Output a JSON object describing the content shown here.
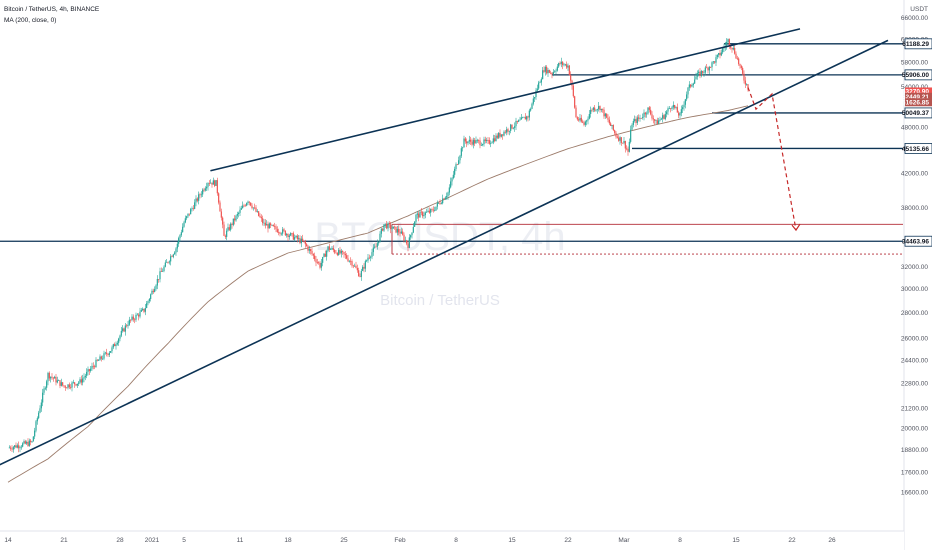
{
  "header": {
    "symbol_line": "Bitcoin / TetherUS, 4h, BINANCE",
    "indicator_line": "MA (200, close, 0)"
  },
  "watermark": {
    "ticker": "BTCUSDT, 4h",
    "name": "Bitcoin / TetherUS"
  },
  "chart_data": {
    "type": "candlestick",
    "title": "Bitcoin / TetherUS, 4h, BINANCE",
    "currency_label": "USDT",
    "ylim": [
      15100,
      68500
    ],
    "y_ticks": [
      {
        "value": 66000,
        "label": "66000.00"
      },
      {
        "value": 62000,
        "label": "62000.00"
      },
      {
        "value": 58000,
        "label": "58000.00"
      },
      {
        "value": 54000,
        "label": "54000.00"
      },
      {
        "value": 48000,
        "label": "48000.00"
      },
      {
        "value": 42000,
        "label": "42000.00"
      },
      {
        "value": 38000,
        "label": "38000.00"
      },
      {
        "value": 32000,
        "label": "32000.00"
      },
      {
        "value": 30000,
        "label": "30000.00"
      },
      {
        "value": 28000,
        "label": "28000.00"
      },
      {
        "value": 26000,
        "label": "26000.00"
      },
      {
        "value": 24400,
        "label": "24400.00"
      },
      {
        "value": 22800,
        "label": "22800.00"
      },
      {
        "value": 21200,
        "label": "21200.00"
      },
      {
        "value": 20000,
        "label": "20000.00"
      },
      {
        "value": 18800,
        "label": "18800.00"
      },
      {
        "value": 17600,
        "label": "17600.00"
      },
      {
        "value": 16600,
        "label": "16600.00"
      }
    ],
    "x_ticks": [
      {
        "pos": 0.0,
        "label": "14"
      },
      {
        "pos": 7.0,
        "label": "21"
      },
      {
        "pos": 14.0,
        "label": "28"
      },
      {
        "pos": 18.0,
        "label": "2021"
      },
      {
        "pos": 22.0,
        "label": "5"
      },
      {
        "pos": 29.0,
        "label": "11"
      },
      {
        "pos": 35.0,
        "label": "18"
      },
      {
        "pos": 42.0,
        "label": "25"
      },
      {
        "pos": 49.0,
        "label": "Feb"
      },
      {
        "pos": 56.0,
        "label": "8"
      },
      {
        "pos": 63.0,
        "label": "15"
      },
      {
        "pos": 70.0,
        "label": "22"
      },
      {
        "pos": 77.0,
        "label": "Mar"
      },
      {
        "pos": 84.0,
        "label": "8"
      },
      {
        "pos": 91.0,
        "label": "15"
      },
      {
        "pos": 98.0,
        "label": "22"
      },
      {
        "pos": 103.0,
        "label": "26"
      }
    ],
    "price_path": [
      [
        0,
        18900
      ],
      [
        3,
        19200
      ],
      [
        5,
        23400
      ],
      [
        7,
        22600
      ],
      [
        9,
        22900
      ],
      [
        11,
        24200
      ],
      [
        13,
        25200
      ],
      [
        15,
        27200
      ],
      [
        17,
        28200
      ],
      [
        19,
        31300
      ],
      [
        21,
        33800
      ],
      [
        22,
        36400
      ],
      [
        25,
        41000
      ],
      [
        26,
        40800
      ],
      [
        27,
        34900
      ],
      [
        28,
        36300
      ],
      [
        30,
        38900
      ],
      [
        32,
        36200
      ],
      [
        35,
        35200
      ],
      [
        37,
        34300
      ],
      [
        39,
        32100
      ],
      [
        40,
        33800
      ],
      [
        42,
        33100
      ],
      [
        43,
        32400
      ],
      [
        44,
        31200
      ],
      [
        45,
        32900
      ],
      [
        46,
        33900
      ],
      [
        47,
        36200
      ],
      [
        49,
        35400
      ],
      [
        50,
        34100
      ],
      [
        51,
        37100
      ],
      [
        53,
        37600
      ],
      [
        55,
        39700
      ],
      [
        57,
        46100
      ],
      [
        60,
        45900
      ],
      [
        63,
        48100
      ],
      [
        65,
        49600
      ],
      [
        67,
        56900
      ],
      [
        68,
        56200
      ],
      [
        69,
        57800
      ],
      [
        70,
        57400
      ],
      [
        70.5,
        53900
      ],
      [
        71,
        49400
      ],
      [
        72,
        48400
      ],
      [
        73,
        50700
      ],
      [
        74,
        50900
      ],
      [
        76,
        46900
      ],
      [
        77,
        45900
      ],
      [
        77.5,
        44700
      ],
      [
        78,
        48600
      ],
      [
        79,
        49300
      ],
      [
        80,
        50600
      ],
      [
        81,
        48600
      ],
      [
        82,
        49600
      ],
      [
        83,
        51300
      ],
      [
        84,
        49600
      ],
      [
        85,
        53600
      ],
      [
        86,
        55600
      ],
      [
        87,
        56600
      ],
      [
        88,
        57700
      ],
      [
        89,
        59400
      ],
      [
        90,
        61800
      ],
      [
        90.8,
        59900
      ],
      [
        91.3,
        58000
      ],
      [
        92,
        55200
      ],
      [
        92.5,
        53900
      ]
    ],
    "ma200_path": [
      [
        0,
        17100
      ],
      [
        5,
        18300
      ],
      [
        10,
        20100
      ],
      [
        15,
        22600
      ],
      [
        20,
        25600
      ],
      [
        25,
        28900
      ],
      [
        30,
        31600
      ],
      [
        35,
        33300
      ],
      [
        40,
        34300
      ],
      [
        45,
        35300
      ],
      [
        50,
        37100
      ],
      [
        55,
        39100
      ],
      [
        60,
        41300
      ],
      [
        65,
        43200
      ],
      [
        70,
        45100
      ],
      [
        75,
        46700
      ],
      [
        80,
        48100
      ],
      [
        85,
        49400
      ],
      [
        90,
        50400
      ],
      [
        92.5,
        51100
      ]
    ],
    "horizontal_levels": [
      {
        "value": 61188.29,
        "label": "61188.29",
        "x_from": 89.5
      },
      {
        "value": 55906.0,
        "label": "55906.00",
        "x_from": 68.0
      },
      {
        "value": 50049.37,
        "label": "50049.37",
        "x_from": 88.0
      },
      {
        "value": 45135.66,
        "label": "45135.66",
        "x_from": 78.0
      },
      {
        "value": 34463.96,
        "label": "34463.96",
        "x_from": -2.0
      }
    ],
    "price_tags": [
      {
        "value": 53270.9,
        "label": "53270.90"
      },
      {
        "value": 52449.21,
        "label": "52449.21"
      },
      {
        "value": 51626.85,
        "label": "51626.85"
      }
    ],
    "support_zone_lines": [
      36200,
      33200
    ],
    "support_zone_box_start": 48.0,
    "trendlines": [
      {
        "from": [
          -2,
          17800
        ],
        "to": [
          110,
          61800
        ]
      },
      {
        "from": [
          25.3,
          42300
        ],
        "to": [
          99,
          63900
        ]
      }
    ],
    "projection_path": [
      [
        92.5,
        53900
      ],
      [
        93.5,
        50600
      ],
      [
        95.5,
        52900
      ],
      [
        98.5,
        35600
      ]
    ]
  }
}
